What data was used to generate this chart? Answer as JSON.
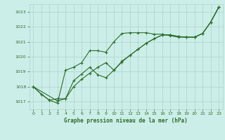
{
  "title": "Graphe pression niveau de la mer (hPa)",
  "bg_color": "#cceee8",
  "grid_color": "#aad4cc",
  "line_color": "#2d6e2d",
  "marker_color": "#2d6e2d",
  "xlim": [
    -0.5,
    23.5
  ],
  "ylim": [
    1016.5,
    1023.5
  ],
  "yticks": [
    1017,
    1018,
    1019,
    1020,
    1021,
    1022,
    1023
  ],
  "xticks": [
    0,
    1,
    2,
    3,
    4,
    5,
    6,
    7,
    8,
    9,
    10,
    11,
    12,
    13,
    14,
    15,
    16,
    17,
    18,
    19,
    20,
    21,
    22,
    23
  ],
  "series1": {
    "x": [
      0,
      1,
      2,
      3,
      4,
      5,
      6,
      7,
      8,
      9,
      10,
      11,
      12,
      13,
      14,
      15,
      16,
      17,
      18,
      19,
      20,
      21,
      22,
      23
    ],
    "y": [
      1018.0,
      1017.5,
      1017.1,
      1016.9,
      1019.1,
      1019.3,
      1019.6,
      1020.4,
      1020.4,
      1020.3,
      1021.0,
      1021.55,
      1021.6,
      1021.6,
      1021.6,
      1021.5,
      1021.5,
      1021.4,
      1021.3,
      1021.3,
      1021.3,
      1021.55,
      1022.3,
      1023.3
    ]
  },
  "series2": {
    "x": [
      0,
      1,
      2,
      3,
      4,
      5,
      6,
      7,
      8,
      9,
      10,
      11,
      12,
      13,
      14,
      15,
      16,
      17,
      18,
      19,
      20,
      21,
      22,
      23
    ],
    "y": [
      1018.0,
      1017.5,
      1017.1,
      1017.2,
      1017.2,
      1018.4,
      1018.85,
      1019.3,
      1018.8,
      1018.6,
      1019.1,
      1019.7,
      1020.1,
      1020.5,
      1020.9,
      1021.2,
      1021.45,
      1021.45,
      1021.35,
      1021.3,
      1021.3,
      1021.55,
      1022.3,
      1023.3
    ]
  },
  "series3": {
    "x": [
      0,
      3,
      4,
      5,
      6,
      7,
      8,
      9,
      10,
      11,
      12,
      13,
      14,
      15,
      16,
      17,
      18,
      19,
      20,
      21,
      22,
      23
    ],
    "y": [
      1018.0,
      1017.05,
      1017.2,
      1018.0,
      1018.5,
      1018.9,
      1019.3,
      1019.6,
      1019.1,
      1019.65,
      1020.1,
      1020.5,
      1020.9,
      1021.2,
      1021.45,
      1021.45,
      1021.35,
      1021.3,
      1021.3,
      1021.55,
      1022.3,
      1023.3
    ]
  }
}
